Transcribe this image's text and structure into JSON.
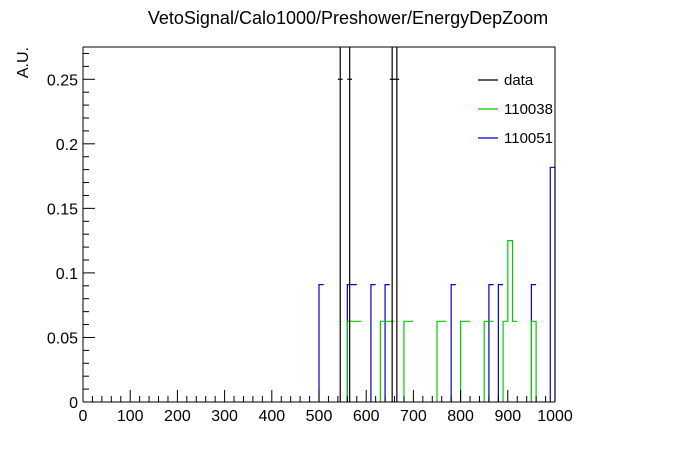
{
  "chart_data": {
    "type": "histogram",
    "title": "VetoSignal/Calo1000/Preshower/EnergyDepZoom",
    "xlabel": "",
    "ylabel": "A.U.",
    "xlim": [
      0,
      1000
    ],
    "ylim": [
      0,
      0.275
    ],
    "bin_width": 10,
    "x_ticks": [
      0,
      100,
      200,
      300,
      400,
      500,
      600,
      700,
      800,
      900,
      1000
    ],
    "x_tick_labels": [
      "0",
      "100",
      "200",
      "300",
      "400",
      "500",
      "600",
      "700",
      "800",
      "900",
      "1000"
    ],
    "y_ticks": [
      0,
      0.05,
      0.1,
      0.15,
      0.2,
      0.25
    ],
    "y_tick_labels": [
      "0",
      "0.05",
      "0.1",
      "0.15",
      "0.2",
      "0.25"
    ],
    "legend_position": "top-right",
    "series": [
      {
        "name": "data",
        "color": "#000000",
        "style": "error-bars",
        "bins": [
          {
            "x0": 540,
            "x1": 550,
            "y": 0.25
          },
          {
            "x0": 560,
            "x1": 570,
            "y": 0.25
          },
          {
            "x0": 650,
            "x1": 660,
            "y": 0.25
          },
          {
            "x0": 660,
            "x1": 670,
            "y": 0.25
          }
        ]
      },
      {
        "name": "110038",
        "color": "#00cc00",
        "style": "step",
        "bins": [
          {
            "x0": 560,
            "x1": 570,
            "y": 0.0625
          },
          {
            "x0": 570,
            "x1": 580,
            "y": 0.0625
          },
          {
            "x0": 580,
            "x1": 590,
            "y": 0.0625
          },
          {
            "x0": 630,
            "x1": 640,
            "y": 0.0625
          },
          {
            "x0": 640,
            "x1": 650,
            "y": 0.0625
          },
          {
            "x0": 650,
            "x1": 660,
            "y": 0.0625
          },
          {
            "x0": 680,
            "x1": 690,
            "y": 0.0625
          },
          {
            "x0": 690,
            "x1": 700,
            "y": 0.0625
          },
          {
            "x0": 750,
            "x1": 760,
            "y": 0.0625
          },
          {
            "x0": 760,
            "x1": 770,
            "y": 0.0625
          },
          {
            "x0": 800,
            "x1": 810,
            "y": 0.0625
          },
          {
            "x0": 810,
            "x1": 820,
            "y": 0.0625
          },
          {
            "x0": 850,
            "x1": 860,
            "y": 0.0625
          },
          {
            "x0": 860,
            "x1": 870,
            "y": 0.0625
          },
          {
            "x0": 890,
            "x1": 900,
            "y": 0.0625
          },
          {
            "x0": 900,
            "x1": 910,
            "y": 0.125
          },
          {
            "x0": 910,
            "x1": 920,
            "y": 0.0625
          },
          {
            "x0": 950,
            "x1": 960,
            "y": 0.0625
          }
        ]
      },
      {
        "name": "110051",
        "color": "#0000cc",
        "style": "step",
        "bins": [
          {
            "x0": 500,
            "x1": 510,
            "y": 0.0909
          },
          {
            "x0": 560,
            "x1": 570,
            "y": 0.0909
          },
          {
            "x0": 570,
            "x1": 580,
            "y": 0.0909
          },
          {
            "x0": 610,
            "x1": 620,
            "y": 0.0909
          },
          {
            "x0": 640,
            "x1": 650,
            "y": 0.0909
          },
          {
            "x0": 780,
            "x1": 790,
            "y": 0.0909
          },
          {
            "x0": 860,
            "x1": 870,
            "y": 0.0909
          },
          {
            "x0": 880,
            "x1": 890,
            "y": 0.0909
          },
          {
            "x0": 950,
            "x1": 960,
            "y": 0.0909
          },
          {
            "x0": 990,
            "x1": 1000,
            "y": 0.1818
          }
        ]
      }
    ]
  }
}
